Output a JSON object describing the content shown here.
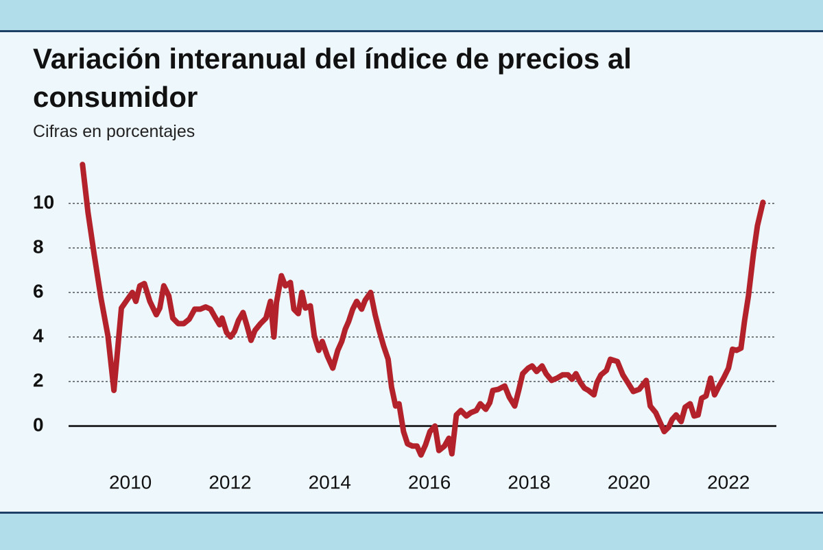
{
  "chart_data": {
    "type": "line",
    "title": "Variación interanual del índice de precios al consumidor",
    "subtitle": "Cifras en porcentajes",
    "x": [
      2009.04,
      2009.15,
      2009.27,
      2009.41,
      2009.55,
      2009.67,
      2009.82,
      2009.96,
      2010.04,
      2010.11,
      2010.19,
      2010.28,
      2010.39,
      2010.52,
      2010.59,
      2010.67,
      2010.77,
      2010.85,
      2010.96,
      2011.07,
      2011.18,
      2011.29,
      2011.4,
      2011.51,
      2011.61,
      2011.71,
      2011.79,
      2011.84,
      2011.93,
      2012.01,
      2012.09,
      2012.17,
      2012.26,
      2012.34,
      2012.42,
      2012.5,
      2012.61,
      2012.72,
      2012.81,
      2012.88,
      2012.93,
      2013.03,
      2013.11,
      2013.21,
      2013.28,
      2013.37,
      2013.44,
      2013.51,
      2013.61,
      2013.69,
      2013.78,
      2013.85,
      2013.95,
      2014.06,
      2014.16,
      2014.24,
      2014.31,
      2014.38,
      2014.46,
      2014.54,
      2014.64,
      2014.71,
      2014.82,
      2014.91,
      2014.99,
      2015.08,
      2015.17,
      2015.24,
      2015.32,
      2015.39,
      2015.48,
      2015.56,
      2015.66,
      2015.75,
      2015.83,
      2015.92,
      2016.01,
      2016.11,
      2016.19,
      2016.3,
      2016.39,
      2016.45,
      2016.54,
      2016.63,
      2016.74,
      2016.83,
      2016.94,
      2017.02,
      2017.13,
      2017.21,
      2017.27,
      2017.38,
      2017.51,
      2017.6,
      2017.71,
      2017.79,
      2017.87,
      2017.98,
      2018.06,
      2018.15,
      2018.26,
      2018.34,
      2018.45,
      2018.56,
      2018.67,
      2018.78,
      2018.86,
      2018.94,
      2019.03,
      2019.11,
      2019.19,
      2019.3,
      2019.36,
      2019.44,
      2019.55,
      2019.63,
      2019.77,
      2019.88,
      2019.98,
      2020.09,
      2020.21,
      2020.35,
      2020.43,
      2020.54,
      2020.64,
      2020.71,
      2020.8,
      2020.87,
      2020.95,
      2021.05,
      2021.13,
      2021.23,
      2021.31,
      2021.39,
      2021.46,
      2021.55,
      2021.64,
      2021.72,
      2021.81,
      2021.9,
      2022.0,
      2022.08,
      2022.16,
      2022.25,
      2022.32,
      2022.4,
      2022.5,
      2022.58,
      2022.69
    ],
    "values": [
      11.75,
      9.6,
      7.75,
      5.75,
      4.05,
      1.6,
      5.3,
      5.75,
      6.0,
      5.6,
      6.3,
      6.4,
      5.6,
      5.0,
      5.3,
      6.3,
      5.85,
      4.85,
      4.6,
      4.6,
      4.8,
      5.25,
      5.25,
      5.35,
      5.25,
      4.85,
      4.55,
      4.85,
      4.2,
      4.0,
      4.25,
      4.75,
      5.1,
      4.5,
      3.85,
      4.3,
      4.6,
      4.85,
      5.6,
      4.0,
      5.55,
      6.75,
      6.3,
      6.45,
      5.25,
      5.05,
      6.0,
      5.3,
      5.4,
      4.05,
      3.4,
      3.8,
      3.15,
      2.6,
      3.4,
      3.8,
      4.35,
      4.7,
      5.25,
      5.6,
      5.25,
      5.65,
      6.0,
      5.0,
      4.3,
      3.6,
      3.0,
      1.75,
      0.9,
      1.0,
      -0.25,
      -0.8,
      -0.9,
      -0.9,
      -1.3,
      -0.85,
      -0.25,
      0.0,
      -1.1,
      -0.9,
      -0.55,
      -1.25,
      0.5,
      0.7,
      0.45,
      0.6,
      0.7,
      1.0,
      0.75,
      1.05,
      1.6,
      1.65,
      1.8,
      1.3,
      0.9,
      1.6,
      2.35,
      2.6,
      2.7,
      2.45,
      2.7,
      2.35,
      2.05,
      2.15,
      2.3,
      2.3,
      2.1,
      2.35,
      1.95,
      1.7,
      1.6,
      1.4,
      1.95,
      2.3,
      2.5,
      3.0,
      2.9,
      2.3,
      1.95,
      1.55,
      1.65,
      2.05,
      0.9,
      0.6,
      0.1,
      -0.25,
      -0.05,
      0.3,
      0.5,
      0.2,
      0.85,
      1.0,
      0.45,
      0.5,
      1.25,
      1.35,
      2.15,
      1.4,
      1.8,
      2.15,
      2.6,
      3.45,
      3.4,
      3.5,
      4.7,
      5.85,
      7.75,
      9.0,
      10.05
    ],
    "color": "#b3222b",
    "xlim": [
      2008.76,
      2022.96
    ],
    "xticks": [
      2010,
      2012,
      2014,
      2016,
      2018,
      2020,
      2022
    ],
    "ylim": [
      -2,
      12
    ],
    "yticks": [
      0,
      2,
      4,
      6,
      8,
      10
    ],
    "grid": true
  }
}
